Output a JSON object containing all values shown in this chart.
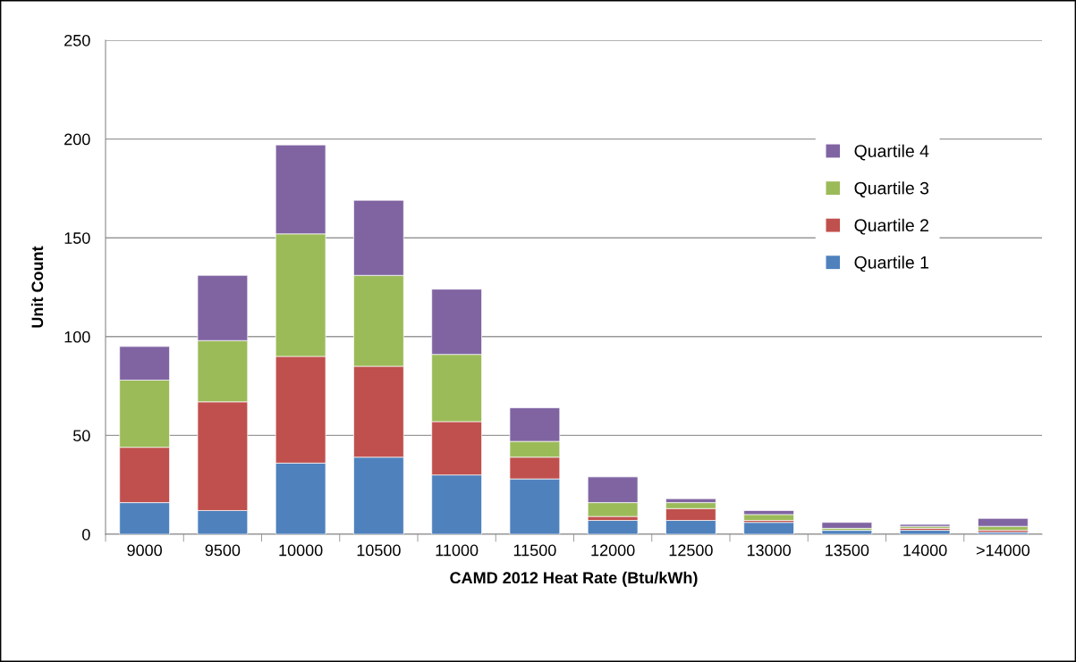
{
  "chart_data": {
    "type": "bar",
    "stacked": true,
    "xlabel": "CAMD 2012 Heat Rate (Btu/kWh)",
    "ylabel": "Unit Count",
    "categories": [
      "9000",
      "9500",
      "10000",
      "10500",
      "11000",
      "11500",
      "12000",
      "12500",
      "13000",
      "13500",
      "14000",
      ">14000"
    ],
    "series": [
      {
        "name": "Quartile 1",
        "color": "#4f81bd",
        "values": [
          16,
          12,
          36,
          39,
          30,
          28,
          7,
          7,
          6,
          2,
          2,
          1
        ]
      },
      {
        "name": "Quartile 2",
        "color": "#c0504d",
        "values": [
          28,
          55,
          54,
          46,
          27,
          11,
          2,
          6,
          1,
          0,
          1,
          1
        ]
      },
      {
        "name": "Quartile 3",
        "color": "#9bbb59",
        "values": [
          34,
          31,
          62,
          46,
          34,
          8,
          7,
          3,
          3,
          1,
          1,
          2
        ]
      },
      {
        "name": "Quartile 4",
        "color": "#8064a2",
        "values": [
          17,
          33,
          45,
          38,
          33,
          17,
          13,
          2,
          2,
          3,
          1,
          4
        ]
      }
    ],
    "ylim": [
      0,
      250
    ],
    "yticks": [
      0,
      50,
      100,
      150,
      200,
      250
    ],
    "grid": "y",
    "legend": "right"
  }
}
